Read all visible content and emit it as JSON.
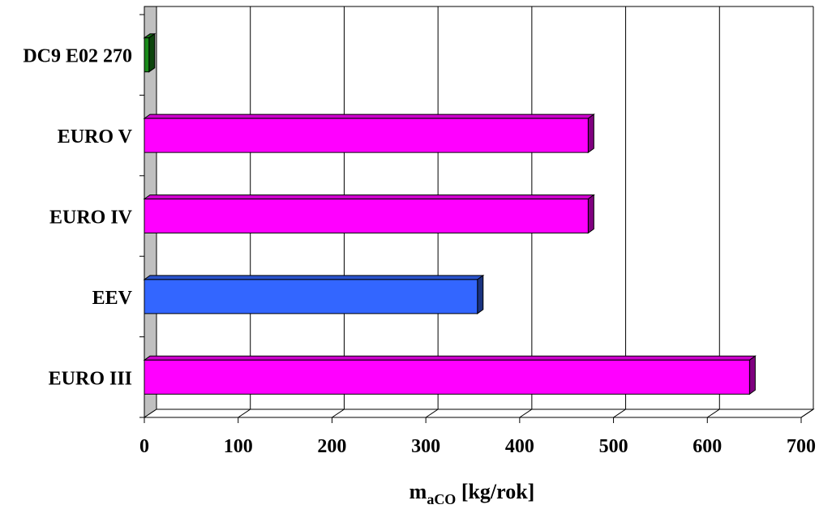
{
  "chart_data": {
    "type": "bar",
    "orientation": "horizontal",
    "title": "",
    "categories": [
      "EURO III",
      "EEV",
      "EURO IV",
      "EURO V",
      "DC9 E02 270"
    ],
    "values": [
      645,
      355,
      473,
      473,
      5
    ],
    "bar_colors": [
      "#ff00ff",
      "#3366ff",
      "#ff00ff",
      "#ff00ff",
      "#1a8a1a"
    ],
    "xlabel": {
      "main": "m",
      "sub": "aCO",
      "unit": " [kg/rok]"
    },
    "ylabel": "",
    "xlim": [
      0,
      700
    ],
    "xticks": [
      0,
      100,
      200,
      300,
      400,
      500,
      600,
      700
    ],
    "grid": true,
    "legend": "none"
  }
}
